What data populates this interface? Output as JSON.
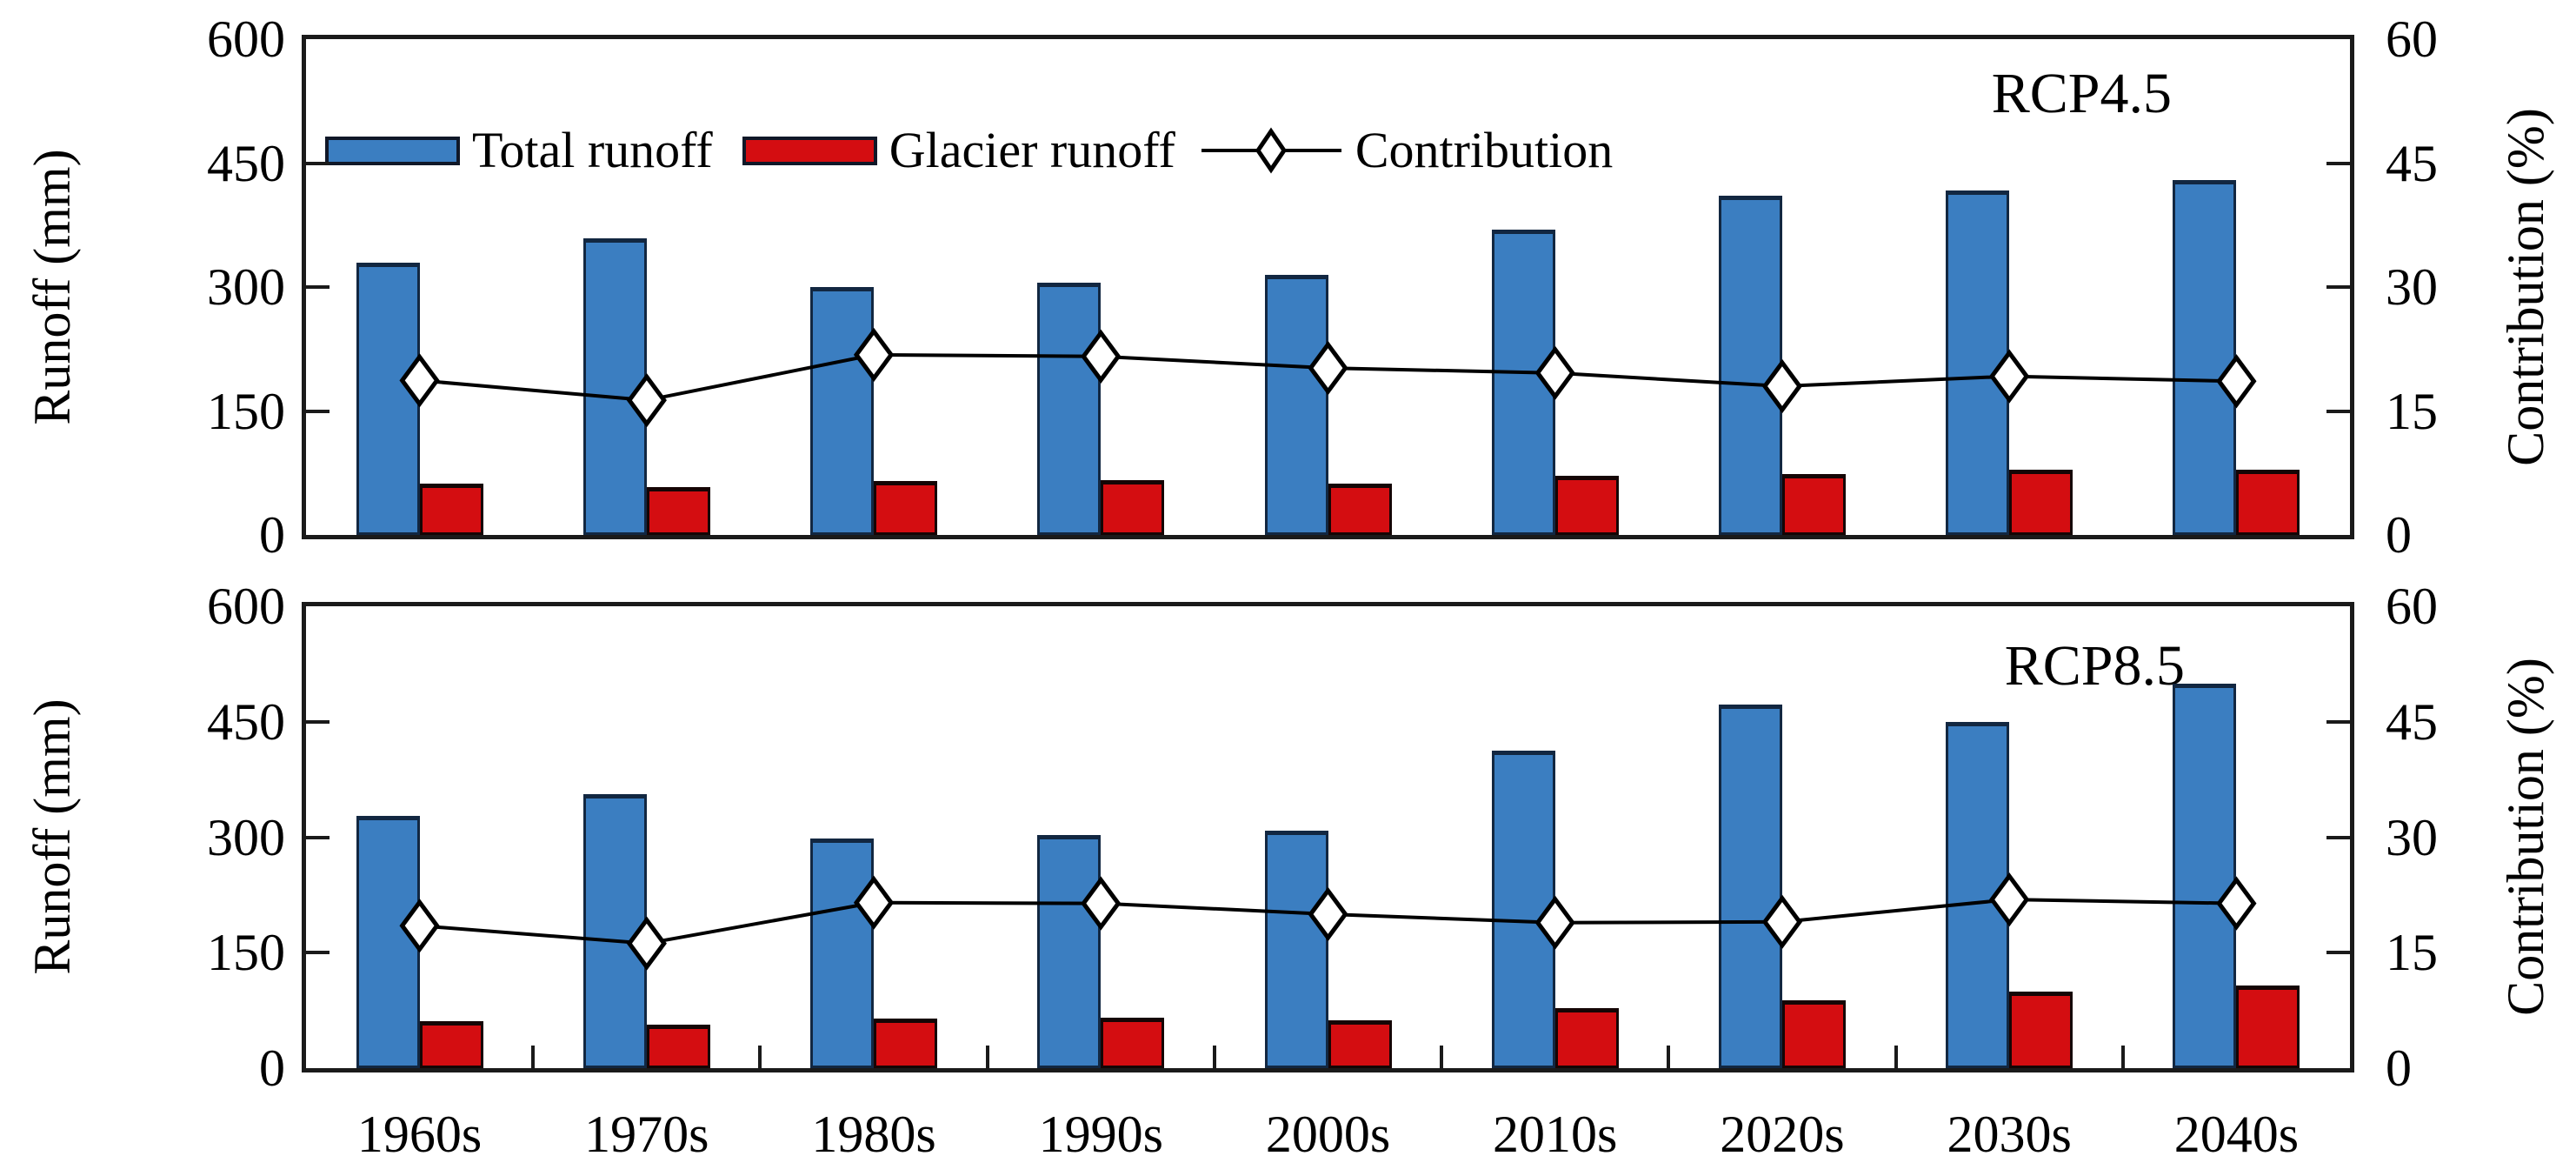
{
  "figure": {
    "background": "#ffffff",
    "left_axis_title": "Runoff (mm)",
    "right_axis_title": "Contribution (%)",
    "left_tick_labels": [
      "600",
      "450",
      "300",
      "150",
      "0"
    ],
    "right_tick_labels": [
      "60",
      "45",
      "30",
      "15",
      "0"
    ],
    "colors": {
      "total_runoff_fill": "#3B7EC1",
      "total_runoff_border": "#122741",
      "glacier_runoff_fill": "#D40D11",
      "glacier_runoff_border": "#150505",
      "contribution_line": "#000000",
      "marker_fill": "#ffffff",
      "marker_stroke": "#000000",
      "frame": "#1a1a1a",
      "text": "#000000"
    },
    "legend": {
      "items": [
        {
          "label": "Total runoff",
          "swatch": "total-runoff-bar"
        },
        {
          "label": "Glacier runoff",
          "swatch": "glacier-runoff-bar"
        },
        {
          "label": "Contribution",
          "swatch": "line-with-diamond-marker"
        }
      ]
    }
  },
  "chart_data": [
    {
      "type": "bar",
      "panel_label": "RCP4.5",
      "categories": [
        "1960s",
        "1970s",
        "1980s",
        "1990s",
        "2000s",
        "2010s",
        "2020s",
        "2030s",
        "2040s"
      ],
      "series": [
        {
          "name": "Total runoff",
          "axis": "left",
          "unit": "mm",
          "values": [
            330,
            359,
            300,
            305,
            315,
            370,
            411,
            417,
            429
          ]
        },
        {
          "name": "Glacier runoff",
          "axis": "left",
          "unit": "mm",
          "values": [
            62,
            58,
            65,
            66,
            62,
            72,
            74,
            79,
            79
          ]
        },
        {
          "name": "Contribution",
          "axis": "right",
          "unit": "%",
          "values": [
            18.7,
            16.3,
            21.8,
            21.6,
            20.2,
            19.6,
            18.0,
            19.2,
            18.6
          ]
        }
      ],
      "left_axis": {
        "label": "Runoff (mm)",
        "min": 0,
        "max": 600,
        "tick_step": 150
      },
      "right_axis": {
        "label": "Contribution (%)",
        "min": 0,
        "max": 60,
        "tick_step": 15
      },
      "grid": false,
      "legend_position": "inside-top-left"
    },
    {
      "type": "bar",
      "panel_label": "RCP8.5",
      "categories": [
        "1960s",
        "1970s",
        "1980s",
        "1990s",
        "2000s",
        "2010s",
        "2020s",
        "2030s",
        "2040s"
      ],
      "series": [
        {
          "name": "Total runoff",
          "axis": "left",
          "unit": "mm",
          "values": [
            328,
            356,
            298,
            303,
            309,
            413,
            472,
            450,
            500
          ]
        },
        {
          "name": "Glacier runoff",
          "axis": "left",
          "unit": "mm",
          "values": [
            61,
            57,
            64,
            66,
            62,
            78,
            88,
            100,
            107
          ]
        },
        {
          "name": "Contribution",
          "axis": "right",
          "unit": "%",
          "values": [
            18.5,
            16.2,
            21.5,
            21.4,
            20.0,
            18.9,
            19.0,
            21.9,
            21.4
          ]
        }
      ],
      "left_axis": {
        "label": "Runoff (mm)",
        "min": 0,
        "max": 600,
        "tick_step": 150
      },
      "right_axis": {
        "label": "Contribution (%)",
        "min": 0,
        "max": 60,
        "tick_step": 15
      },
      "grid": false,
      "legend_position": "none"
    }
  ]
}
